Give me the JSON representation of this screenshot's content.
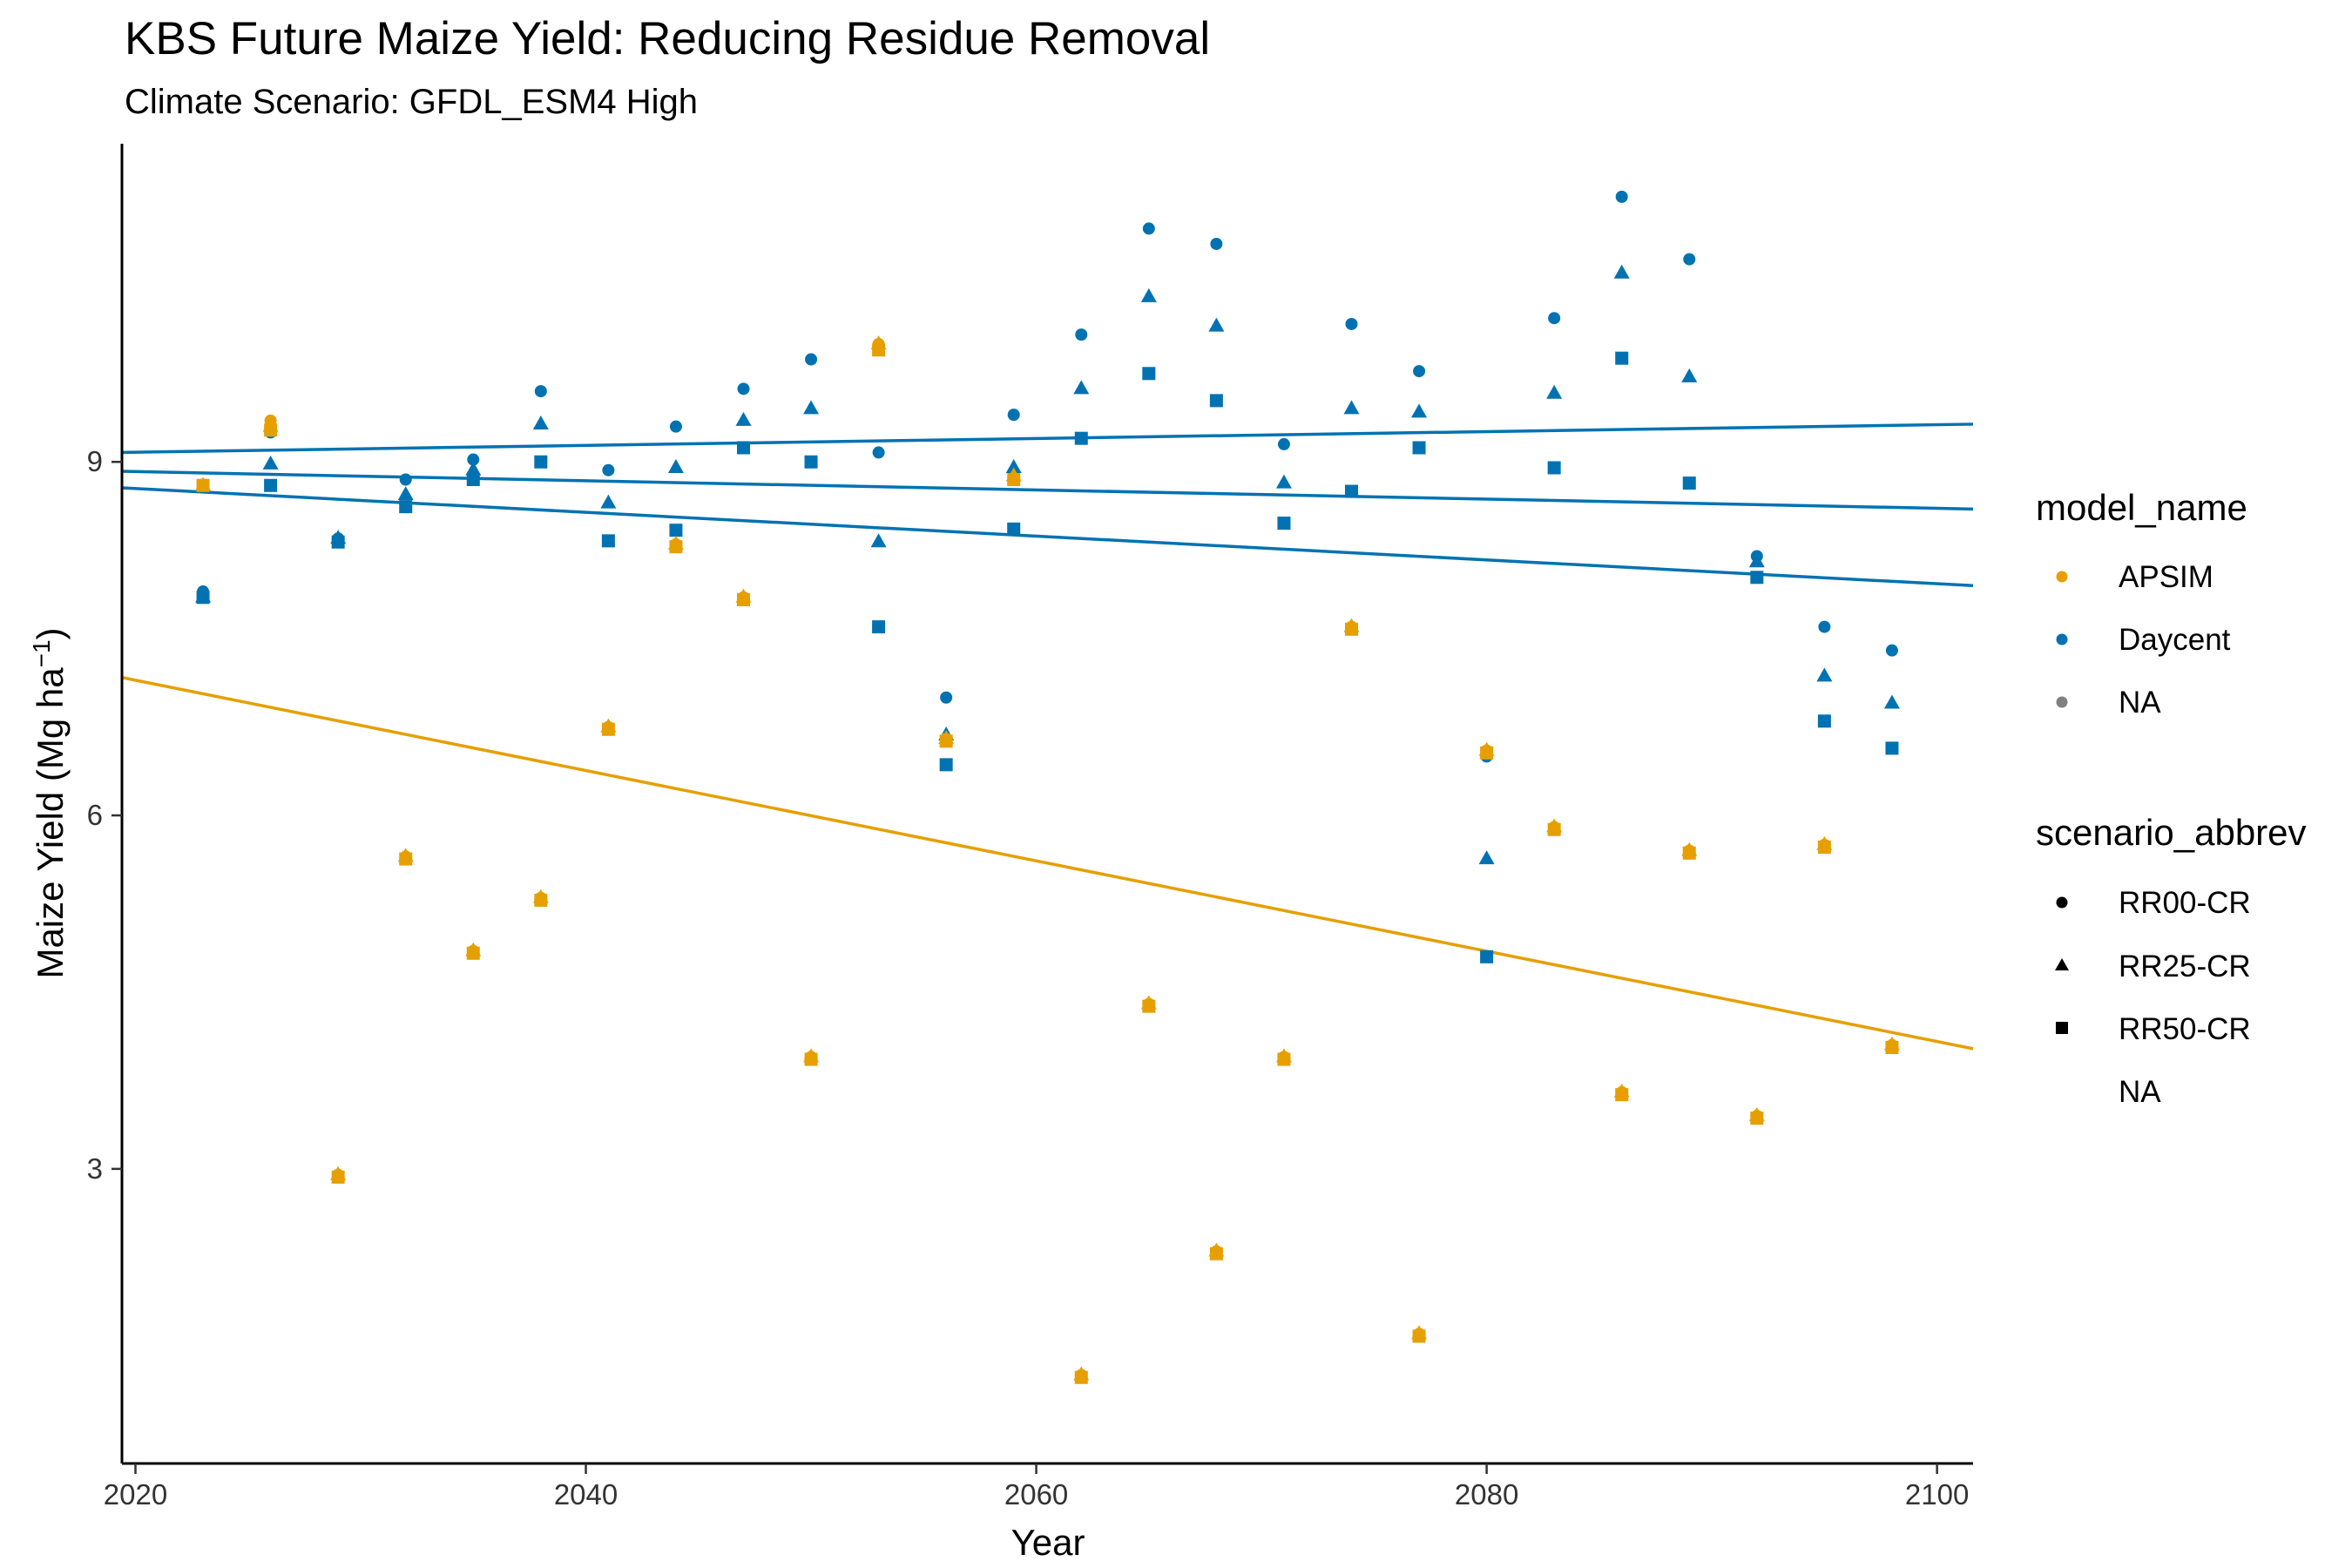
{
  "colors": {
    "APSIM": "#E69F00",
    "Daycent": "#0072B2",
    "NA": "#808080"
  },
  "chart_data": {
    "type": "scatter",
    "title": "KBS Future Maize Yield: Reducing Residue Removal",
    "subtitle": "Climate Scenario: GFDL_ESM4 High",
    "xlabel": "Year",
    "ylabel": "Maize Yield (Mg ha",
    "ylabel_unit_sup": "−1",
    "ylabel_close": ")",
    "xlim": [
      2019.4,
      2101.6
    ],
    "ylim": [
      0.5,
      11.7
    ],
    "xticks": [
      2020,
      2040,
      2060,
      2080,
      2100
    ],
    "yticks": [
      3,
      6,
      9
    ],
    "legend": {
      "model_title": "model_name",
      "model_items": [
        "APSIM",
        "Daycent",
        "NA"
      ],
      "scenario_title": "scenario_abbrev",
      "scenario_items": [
        "RR00-CR",
        "RR25-CR",
        "RR50-CR",
        "NA"
      ]
    },
    "series": [
      {
        "model": "APSIM",
        "scenario": "RR00-CR",
        "x": [
          2023,
          2026,
          2029,
          2032,
          2035,
          2038,
          2041,
          2044,
          2047,
          2050,
          2053,
          2056,
          2059,
          2062,
          2065,
          2068,
          2071,
          2074,
          2077,
          2080,
          2083,
          2086,
          2089,
          2092,
          2095,
          2098
        ],
        "y": [
          8.8,
          9.35,
          2.95,
          5.65,
          4.85,
          5.3,
          6.75,
          8.3,
          7.85,
          3.95,
          10.0,
          6.65,
          8.85,
          1.25,
          4.4,
          2.3,
          3.95,
          7.6,
          1.6,
          6.55,
          5.9,
          3.65,
          5.7,
          3.45,
          5.75,
          4.05
        ]
      },
      {
        "model": "APSIM",
        "scenario": "RR25-CR",
        "x": [
          2023,
          2026,
          2029,
          2032,
          2035,
          2038,
          2041,
          2044,
          2047,
          2050,
          2053,
          2056,
          2059,
          2062,
          2065,
          2068,
          2071,
          2074,
          2077,
          2080,
          2083,
          2086,
          2089,
          2092,
          2095,
          2098
        ],
        "y": [
          8.8,
          9.3,
          2.95,
          5.65,
          4.85,
          5.3,
          6.75,
          8.3,
          7.85,
          3.95,
          10.0,
          6.65,
          8.88,
          1.25,
          4.4,
          2.3,
          3.95,
          7.6,
          1.6,
          6.55,
          5.9,
          3.65,
          5.7,
          3.45,
          5.75,
          4.05
        ]
      },
      {
        "model": "APSIM",
        "scenario": "RR50-CR",
        "x": [
          2023,
          2026,
          2029,
          2032,
          2035,
          2038,
          2041,
          2044,
          2047,
          2050,
          2053,
          2056,
          2059,
          2062,
          2065,
          2068,
          2071,
          2074,
          2077,
          2080,
          2083,
          2086,
          2089,
          2092,
          2095,
          2098
        ],
        "y": [
          8.8,
          9.27,
          2.93,
          5.63,
          4.83,
          5.28,
          6.73,
          8.28,
          7.83,
          3.93,
          9.95,
          6.63,
          8.85,
          1.23,
          4.38,
          2.28,
          3.93,
          7.58,
          1.58,
          6.53,
          5.88,
          3.63,
          5.68,
          3.43,
          5.73,
          4.03
        ]
      },
      {
        "model": "Daycent",
        "scenario": "RR00-CR",
        "x": [
          2023,
          2026,
          2029,
          2032,
          2035,
          2038,
          2041,
          2044,
          2047,
          2050,
          2053,
          2056,
          2059,
          2062,
          2065,
          2068,
          2071,
          2074,
          2077,
          2080,
          2083,
          2086,
          2089,
          2092,
          2095,
          2098
        ],
        "y": [
          7.9,
          9.25,
          8.35,
          8.85,
          9.02,
          9.6,
          8.93,
          9.3,
          9.62,
          9.87,
          9.08,
          7.0,
          9.4,
          10.08,
          10.98,
          10.85,
          9.15,
          10.17,
          9.77,
          6.5,
          10.22,
          11.25,
          10.72,
          8.2,
          7.6,
          7.4
        ]
      },
      {
        "model": "Daycent",
        "scenario": "RR25-CR",
        "x": [
          2023,
          2026,
          2029,
          2032,
          2035,
          2038,
          2041,
          2044,
          2047,
          2050,
          2053,
          2056,
          2059,
          2062,
          2065,
          2068,
          2071,
          2074,
          2077,
          2080,
          2083,
          2086,
          2089,
          2092,
          2095,
          2098
        ],
        "y": [
          7.85,
          8.98,
          8.35,
          8.72,
          8.93,
          9.32,
          8.65,
          8.95,
          9.35,
          9.45,
          8.32,
          6.68,
          8.95,
          9.62,
          10.4,
          10.15,
          8.82,
          9.45,
          9.42,
          5.63,
          9.58,
          10.6,
          9.72,
          8.15,
          7.18,
          6.95
        ]
      },
      {
        "model": "Daycent",
        "scenario": "RR50-CR",
        "x": [
          2023,
          2026,
          2029,
          2032,
          2035,
          2038,
          2041,
          2044,
          2047,
          2050,
          2053,
          2056,
          2059,
          2062,
          2065,
          2068,
          2071,
          2074,
          2077,
          2080,
          2083,
          2086,
          2089,
          2092,
          2095,
          2098
        ],
        "y": [
          7.85,
          8.8,
          8.32,
          8.62,
          8.85,
          9.0,
          8.33,
          8.42,
          9.12,
          9.0,
          7.6,
          6.43,
          8.43,
          9.2,
          9.75,
          9.52,
          8.48,
          8.75,
          9.12,
          4.8,
          8.95,
          9.88,
          8.82,
          8.02,
          6.8,
          6.57
        ]
      }
    ],
    "trend_lines": [
      {
        "model": "Daycent",
        "scenario": "RR00-CR",
        "x": [
          2019.4,
          2101.6
        ],
        "y": [
          9.08,
          9.32
        ]
      },
      {
        "model": "Daycent",
        "scenario": "RR25-CR",
        "x": [
          2019.4,
          2101.6
        ],
        "y": [
          8.92,
          8.6
        ]
      },
      {
        "model": "Daycent",
        "scenario": "RR50-CR",
        "x": [
          2019.4,
          2101.6
        ],
        "y": [
          8.78,
          7.95
        ]
      },
      {
        "model": "APSIM",
        "scenario": "all",
        "x": [
          2019.4,
          2101.6
        ],
        "y": [
          7.17,
          4.02
        ]
      }
    ]
  }
}
